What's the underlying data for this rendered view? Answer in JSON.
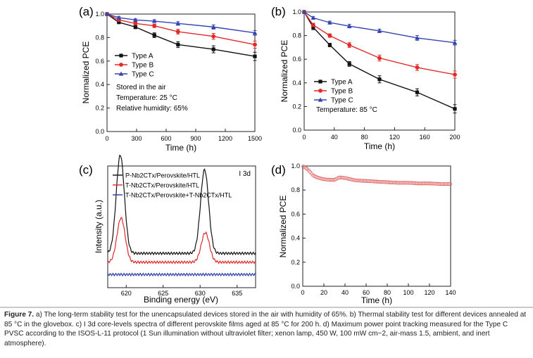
{
  "figure": {
    "caption_label": "Figure 7.",
    "caption_text": "a) The long-term stability test for the unencapsulated devices stored in the air with humidity of 65%. b) Thermal stability test for different devices annealed at 85 °C in the glovebox. c) I 3d core-levels spectra of different perovskite films aged at 85 °C for 200 h. d) Maximum power point tracking measured for the Type C PVSC according to the ISOS-L-11 protocol (1 Sun illumination without ultraviolet filter; xenon lamp, 450 W, 100 mW cm−2, air-mass 1.5, ambient, and inert atmosphere)."
  },
  "colors": {
    "type_a": "#111111",
    "type_b": "#e02a2a",
    "type_c": "#3444b0",
    "nb_p": "#111111",
    "nb_t": "#e02a2a",
    "nb_tt": "#2a3aa0",
    "mpp": "#e06060"
  },
  "chart_data": [
    {
      "panel": "(a)",
      "type": "line",
      "xlabel": "Time (h)",
      "ylabel": "Normalized PCE",
      "xlim": [
        0,
        1500
      ],
      "ylim": [
        0.0,
        1.0
      ],
      "xticks": [
        "0",
        "300",
        "600",
        "900",
        "1200",
        "1500"
      ],
      "yticks": [
        "0.0",
        "0.2",
        "0.4",
        "0.6",
        "0.8",
        "1.0"
      ],
      "x": [
        0,
        120,
        288,
        480,
        720,
        1080,
        1500
      ],
      "series": [
        {
          "name": "Type A",
          "values": [
            1.0,
            0.93,
            0.89,
            0.82,
            0.74,
            0.7,
            0.64
          ],
          "err": [
            0,
            0.01,
            0.015,
            0.02,
            0.025,
            0.03,
            0.035
          ]
        },
        {
          "name": "Type B",
          "values": [
            1.0,
            0.95,
            0.92,
            0.9,
            0.85,
            0.81,
            0.74
          ],
          "err": [
            0,
            0.01,
            0.012,
            0.015,
            0.02,
            0.025,
            0.03
          ]
        },
        {
          "name": "Type C",
          "values": [
            1.0,
            0.97,
            0.95,
            0.94,
            0.92,
            0.89,
            0.84
          ],
          "err": [
            0,
            0.008,
            0.01,
            0.012,
            0.015,
            0.018,
            0.02
          ]
        }
      ],
      "legend_position": "middle-left",
      "annotations": [
        "Stored in the air",
        "Temperature: 25 °C",
        "Relative humidity: 65%"
      ]
    },
    {
      "panel": "(b)",
      "type": "line",
      "xlabel": "Time (h)",
      "ylabel": "Normalized PCE",
      "xlim": [
        0,
        200
      ],
      "ylim": [
        0.0,
        1.0
      ],
      "xticks": [
        "0",
        "40",
        "80",
        "120",
        "160",
        "200"
      ],
      "yticks": [
        "0.0",
        "0.2",
        "0.4",
        "0.6",
        "0.8",
        "1.0"
      ],
      "x": [
        0,
        12,
        34,
        60,
        100,
        150,
        200
      ],
      "series": [
        {
          "name": "Type A",
          "values": [
            1.0,
            0.87,
            0.72,
            0.56,
            0.43,
            0.32,
            0.18
          ],
          "err": [
            0,
            0.02,
            0.015,
            0.02,
            0.03,
            0.03,
            0.035
          ]
        },
        {
          "name": "Type B",
          "values": [
            1.0,
            0.89,
            0.8,
            0.72,
            0.61,
            0.53,
            0.47
          ],
          "err": [
            0,
            0.015,
            0.015,
            0.02,
            0.025,
            0.025,
            0.03
          ]
        },
        {
          "name": "Type C",
          "values": [
            1.0,
            0.95,
            0.91,
            0.88,
            0.84,
            0.78,
            0.74
          ],
          "err": [
            0,
            0.01,
            0.012,
            0.015,
            0.015,
            0.02,
            0.02
          ]
        }
      ],
      "legend_position": "bottom-left",
      "annotations": [
        "Temperature: 85 °C"
      ]
    },
    {
      "panel": "(c)",
      "type": "line",
      "xlabel": "Binding energy (eV)",
      "ylabel": "Intensity (a.u.)",
      "xlim": [
        617.5,
        637.5
      ],
      "xticks": [
        "620",
        "625",
        "630",
        "635"
      ],
      "series": [
        {
          "name": "P-Nb2CTx/Perovskite/HTL",
          "offset": 0.2,
          "peaks": [
            [
              619.2,
              1.0,
              0.55
            ],
            [
              630.6,
              0.85,
              0.55
            ]
          ],
          "baseline": 0.02
        },
        {
          "name": "T-Nb2CTx/Perovskite/HTL",
          "offset": 0.08,
          "peaks": [
            [
              619.3,
              0.45,
              0.55
            ],
            [
              630.7,
              0.3,
              0.55
            ]
          ],
          "baseline": 0.05
        },
        {
          "name": "T-Nb2CTx/Perovskite+T-Nb2CTx/HTL",
          "offset": -0.02,
          "peaks": [],
          "baseline": 0.025
        }
      ],
      "annotations": [
        "I 3d"
      ]
    },
    {
      "panel": "(d)",
      "type": "scatter",
      "xlabel": "Time (h)",
      "ylabel": "Normalized PCE",
      "xlim": [
        0,
        140
      ],
      "ylim": [
        0.0,
        1.0
      ],
      "xticks": [
        "0",
        "20",
        "40",
        "60",
        "80",
        "100",
        "120",
        "140"
      ],
      "yticks": [
        "0.0",
        "0.2",
        "0.4",
        "0.6",
        "0.8",
        "1.0"
      ],
      "curve": [
        [
          0,
          1.0
        ],
        [
          5,
          0.97
        ],
        [
          10,
          0.92
        ],
        [
          15,
          0.9
        ],
        [
          20,
          0.89
        ],
        [
          25,
          0.885
        ],
        [
          30,
          0.885
        ],
        [
          35,
          0.905
        ],
        [
          40,
          0.9
        ],
        [
          45,
          0.89
        ],
        [
          50,
          0.88
        ],
        [
          60,
          0.875
        ],
        [
          70,
          0.87
        ],
        [
          80,
          0.865
        ],
        [
          90,
          0.86
        ],
        [
          100,
          0.86
        ],
        [
          110,
          0.855
        ],
        [
          120,
          0.855
        ],
        [
          130,
          0.85
        ],
        [
          140,
          0.85
        ]
      ]
    }
  ]
}
